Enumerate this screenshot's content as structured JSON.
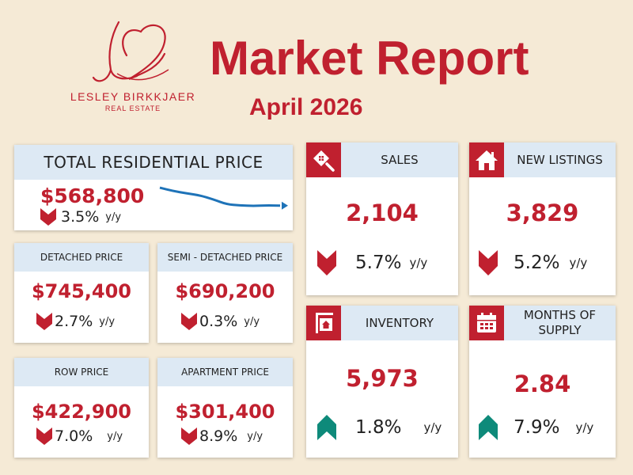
{
  "brand": {
    "name": "LESLEY BIRKKJAER",
    "sub": "REAL ESTATE",
    "color": "#c0202f"
  },
  "header": {
    "title": "Market Report",
    "period": "April 2026"
  },
  "colors": {
    "accent": "#c0202f",
    "header_bg": "#dde9f4",
    "page_bg": "#f5ead6",
    "up": "#0e8a7a",
    "line": "#1e73b8"
  },
  "total": {
    "label": "TOTAL RESIDENTIAL PRICE",
    "value": "$568,800",
    "change": "3.5%",
    "unit": "y/y",
    "direction": "down",
    "trend": [
      0.95,
      0.85,
      0.78,
      0.72,
      0.6,
      0.45,
      0.42,
      0.4,
      0.42,
      0.41
    ],
    "icon": "trend-line-icon"
  },
  "detached": {
    "label": "DETACHED PRICE",
    "value": "$745,400",
    "change": "2.7%",
    "unit": "y/y",
    "direction": "down"
  },
  "semi": {
    "label": "SEMI - DETACHED PRICE",
    "value": "$690,200",
    "change": "0.3%",
    "unit": "y/y",
    "direction": "down"
  },
  "row": {
    "label": "ROW PRICE",
    "value": "$422,900",
    "change": "7.0%",
    "unit": "y/y",
    "direction": "down"
  },
  "apartment": {
    "label": "APARTMENT PRICE",
    "value": "$301,400",
    "change": "8.9%",
    "unit": "y/y",
    "direction": "down"
  },
  "sales": {
    "label": "SALES",
    "value": "2,104",
    "change": "5.7%",
    "unit": "y/y",
    "direction": "down",
    "icon": "house-search-icon"
  },
  "new_listings": {
    "label": "NEW LISTINGS",
    "value": "3,829",
    "change": "5.2%",
    "unit": "y/y",
    "direction": "down",
    "icon": "house-icon"
  },
  "inventory": {
    "label": "INVENTORY",
    "value": "5,973",
    "change": "1.8%",
    "unit": "y/y",
    "direction": "up",
    "icon": "sign-icon"
  },
  "months_supply": {
    "label": "MONTHS OF SUPPLY",
    "value": "2.84",
    "change": "7.9%",
    "unit": "y/y",
    "direction": "up",
    "icon": "calendar-icon"
  }
}
